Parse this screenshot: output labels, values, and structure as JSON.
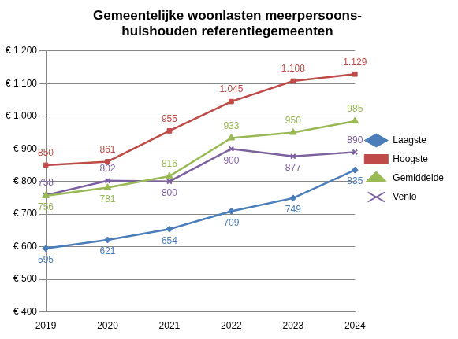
{
  "chart_data": {
    "type": "line",
    "title": [
      "Gemeentelijke woonlasten meerpersoons-",
      "huishouden referentiegemeenten"
    ],
    "categories": [
      "2019",
      "2020",
      "2021",
      "2022",
      "2023",
      "2024"
    ],
    "series": [
      {
        "name": "Laagste",
        "color": "#4a7ebb",
        "marker": "diamond",
        "values": [
          595,
          621,
          654,
          709,
          749,
          835
        ]
      },
      {
        "name": "Hoogste",
        "color": "#be4b48",
        "marker": "square",
        "values": [
          850,
          861,
          955,
          1045,
          1108,
          1129
        ],
        "value_labels": [
          "850",
          "861",
          "955",
          "1.045",
          "1.108",
          "1.129"
        ]
      },
      {
        "name": "Gemiddelde",
        "color": "#98b954",
        "marker": "triangle",
        "values": [
          756,
          781,
          816,
          933,
          950,
          985
        ]
      },
      {
        "name": "Venlo",
        "color": "#7d60a0",
        "marker": "x",
        "values": [
          758,
          802,
          800,
          900,
          877,
          890
        ]
      }
    ],
    "ylim": [
      400,
      1200
    ],
    "yticks": [
      {
        "value": 400,
        "label": "€ 400"
      },
      {
        "value": 500,
        "label": "€ 500"
      },
      {
        "value": 600,
        "label": "€ 600"
      },
      {
        "value": 700,
        "label": "€ 700"
      },
      {
        "value": 800,
        "label": "€ 800"
      },
      {
        "value": 900,
        "label": "€ 900"
      },
      {
        "value": 1000,
        "label": "€ 1.000"
      },
      {
        "value": 1100,
        "label": "€ 1.100"
      },
      {
        "value": 1200,
        "label": "€ 1.200"
      }
    ],
    "grid": true,
    "legend": "right",
    "data_labels": true
  }
}
